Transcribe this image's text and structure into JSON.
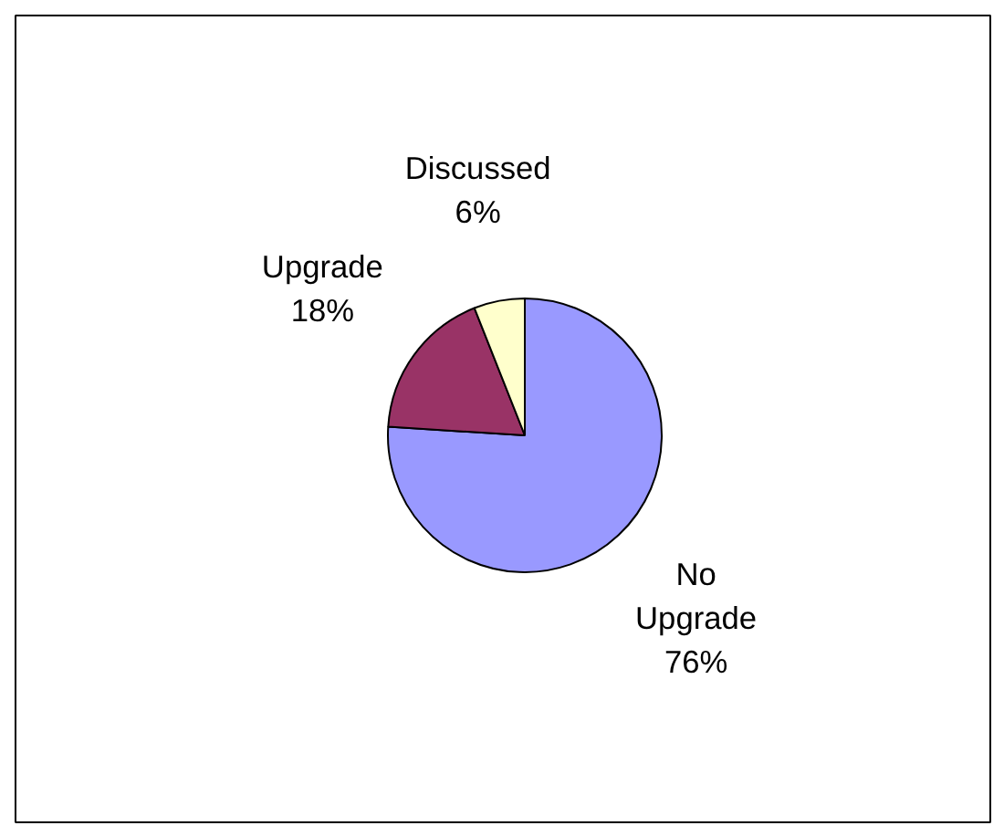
{
  "chart_data": {
    "type": "pie",
    "categories": [
      "No Upgrade",
      "Upgrade",
      "Discussed"
    ],
    "values": [
      76,
      18,
      6
    ],
    "colors": [
      "#9999ff",
      "#993366",
      "#ffffcc"
    ],
    "value_labels": [
      "76%",
      "18%",
      "6%"
    ]
  }
}
